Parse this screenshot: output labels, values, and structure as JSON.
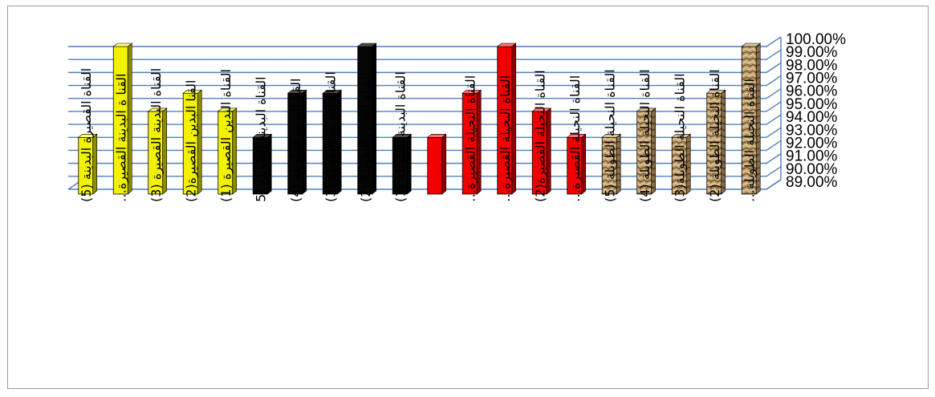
{
  "chart_data": {
    "type": "bar",
    "style": "3d-bar",
    "title": "",
    "xlabel": "",
    "ylabel": "",
    "ylim": [
      89,
      100
    ],
    "y_tick_step": 1,
    "y_tick_format": "percent-2dp",
    "y_axis_side": "right",
    "grid": true,
    "legend": "none",
    "colors": {
      "yellow": "#f2f200",
      "black": "#050505",
      "red": "#f00000",
      "texture": "#b59566",
      "grid": "#4f7fc0"
    },
    "categories": [
      {
        "label": "القناة القصيرة البدينة (5)",
        "value": 93.0,
        "color": "yellow"
      },
      {
        "label": "القنا ة البدينة القصيرة…",
        "value": 100.0,
        "color": "yellow"
      },
      {
        "label": "القناة البدينة القصيرة (3)",
        "value": 95.0,
        "color": "yellow"
      },
      {
        "label": "القنا البدين القصيرة(2)",
        "value": 96.4,
        "color": "yellow"
      },
      {
        "label": "القناة البدين القصيرة (1)",
        "value": 95.0,
        "color": "yellow"
      },
      {
        "label": "القناة البدينة الطويلة (5",
        "value": 93.0,
        "color": "black"
      },
      {
        "label": "القنا البدينة الطويلة (4)",
        "value": 96.4,
        "color": "black"
      },
      {
        "label": "القناة البدينة الطويلة (3)",
        "value": 96.4,
        "color": "black"
      },
      {
        "label": "القناة البدين الطويلة (2)",
        "value": 100.0,
        "color": "black"
      },
      {
        "label": "القناة البدينة الطويلة (1)",
        "value": 93.0,
        "color": "black"
      },
      {
        "label": "",
        "value": 93.0,
        "color": "red"
      },
      {
        "label": "القناة النحيلة القصيرة…",
        "value": 96.4,
        "color": "red"
      },
      {
        "label": "القناة النحيلة القصيرة…",
        "value": 100.0,
        "color": "red"
      },
      {
        "label": "القناة النحيلة القصيرة(2)",
        "value": 95.0,
        "color": "red"
      },
      {
        "label": "القناة النحيلة القصيرة…",
        "value": 93.0,
        "color": "red"
      },
      {
        "label": "القناة النحيلة الطويلة (5)",
        "value": 93.0,
        "color": "texture"
      },
      {
        "label": "القناة النحيلة الطويلة (4)",
        "value": 95.0,
        "color": "texture"
      },
      {
        "label": "القناة النحيلة الطويلة(3)",
        "value": 93.0,
        "color": "texture"
      },
      {
        "label": "القناة النحيلة الطويلة (2)",
        "value": 96.4,
        "color": "texture"
      },
      {
        "label": "القناة النحيلة الطويلة…",
        "value": 100.0,
        "color": "texture"
      }
    ]
  }
}
